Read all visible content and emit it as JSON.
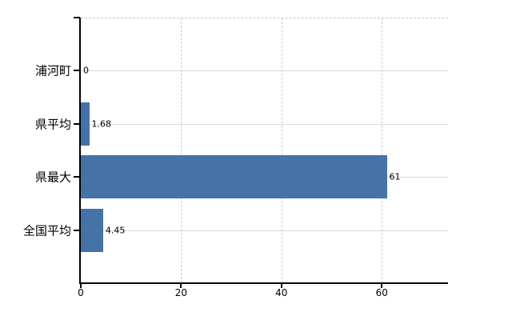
{
  "chart_data": {
    "type": "bar",
    "orientation": "horizontal",
    "title": "",
    "categories": [
      "浦河町",
      "県平均",
      "県最大",
      "全国平均"
    ],
    "values": [
      0,
      1.68,
      61,
      4.45
    ],
    "value_labels": [
      "0",
      "1.68",
      "61",
      "4.45"
    ],
    "x_ticks": [
      0,
      20,
      40,
      60
    ],
    "x_tick_labels": [
      "0",
      "20",
      "40",
      "60"
    ],
    "xlim": [
      0,
      73.2
    ],
    "grid": true,
    "legend_position": "none",
    "bar_color": "#4572a7",
    "axis_color": "#000000",
    "h_gridline_color": "#d5ddd5",
    "v_gridline_color": "#c9c9c9",
    "top_border_color": "#ccc4c9",
    "background_color": "#ffffff",
    "label_color": "#000000"
  }
}
